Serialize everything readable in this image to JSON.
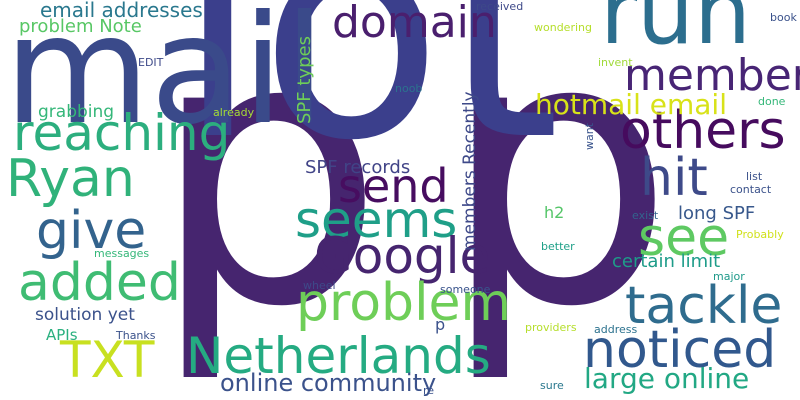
{
  "palette": {
    "background": "#ffffff",
    "dark_purple": "#440154",
    "indigo": "#3b3f8c",
    "slate_blue": "#3a528b",
    "steel_blue": "#31688e",
    "teal_blue": "#26828e",
    "teal": "#1f9e89",
    "green_teal": "#35b779",
    "green": "#6ece58",
    "yellow_green": "#b5de2b",
    "yellow": "#d8e219"
  },
  "words": [
    {
      "text": "p",
      "color": "#46256f"
    },
    {
      "text": "p",
      "color": "#46256f"
    },
    {
      "text": "lot",
      "color": "#3b3f8c"
    },
    {
      "text": "mail",
      "color": "#3a4a8a"
    },
    {
      "text": "run",
      "color": "#2c6e8e"
    },
    {
      "text": "domain",
      "color": "#4a1f6e"
    },
    {
      "text": "members",
      "color": "#482575"
    },
    {
      "text": "others",
      "color": "#460b5e"
    },
    {
      "text": "reaching",
      "color": "#2cae7e"
    },
    {
      "text": "Ryan",
      "color": "#30b27a"
    },
    {
      "text": "send",
      "color": "#470d60"
    },
    {
      "text": "hit",
      "color": "#3e4a89"
    },
    {
      "text": "seems",
      "color": "#1f9f88"
    },
    {
      "text": "give",
      "color": "#33638d"
    },
    {
      "text": "Google",
      "color": "#46256f"
    },
    {
      "text": "see",
      "color": "#5ec962"
    },
    {
      "text": "added",
      "color": "#3fbc73"
    },
    {
      "text": "problem",
      "color": "#6ece58"
    },
    {
      "text": "tackle",
      "color": "#2f6c8e"
    },
    {
      "text": "TXT",
      "color": "#c8e020"
    },
    {
      "text": "Netherlands",
      "color": "#25ab82"
    },
    {
      "text": "noticed",
      "color": "#31588d"
    },
    {
      "text": "online community",
      "color": "#3b528b"
    },
    {
      "text": "large online",
      "color": "#22a884"
    },
    {
      "text": "hotmail email",
      "color": "#d8e219"
    },
    {
      "text": "email addresses",
      "color": "#2a788e"
    },
    {
      "text": "problem Note",
      "color": "#58c765"
    },
    {
      "text": "grabbing",
      "color": "#35b779"
    },
    {
      "text": "SPF types",
      "color": "#6ece58"
    },
    {
      "text": "members Recently",
      "color": "#3e4989"
    },
    {
      "text": "SPF records",
      "color": "#414487"
    },
    {
      "text": "long SPF",
      "color": "#38588c"
    },
    {
      "text": "certain limit",
      "color": "#1e9c89"
    },
    {
      "text": "solution yet",
      "color": "#3b528b"
    },
    {
      "text": "APIs",
      "color": "#2ab07f"
    },
    {
      "text": "h2",
      "color": "#54c568"
    },
    {
      "text": "received",
      "color": "#3e4989"
    },
    {
      "text": "wondering",
      "color": "#b5de2b"
    },
    {
      "text": "invent",
      "color": "#a0da39"
    },
    {
      "text": "book",
      "color": "#3b528b"
    },
    {
      "text": "EDIT",
      "color": "#3e4a89"
    },
    {
      "text": "noob",
      "color": "#2c728e"
    },
    {
      "text": "already",
      "color": "#a5db36"
    },
    {
      "text": "want",
      "color": "#3a548c"
    },
    {
      "text": "done",
      "color": "#35b779"
    },
    {
      "text": "list",
      "color": "#3b528b"
    },
    {
      "text": "contact",
      "color": "#3b528b"
    },
    {
      "text": "exist",
      "color": "#33638d"
    },
    {
      "text": "Probably",
      "color": "#d0e11c"
    },
    {
      "text": "better",
      "color": "#1fa088"
    },
    {
      "text": "major",
      "color": "#1f9a8a"
    },
    {
      "text": "messages",
      "color": "#35b779"
    },
    {
      "text": "wheel",
      "color": "#3e4989"
    },
    {
      "text": "someone",
      "color": "#3a548c"
    },
    {
      "text": "Thanks",
      "color": "#3b528b"
    },
    {
      "text": "p",
      "color": "#3b528b"
    },
    {
      "text": "providers",
      "color": "#b5de2b"
    },
    {
      "text": "address",
      "color": "#2c728e"
    },
    {
      "text": "sure",
      "color": "#2a788e"
    },
    {
      "text": "re",
      "color": "#3b528b"
    }
  ]
}
